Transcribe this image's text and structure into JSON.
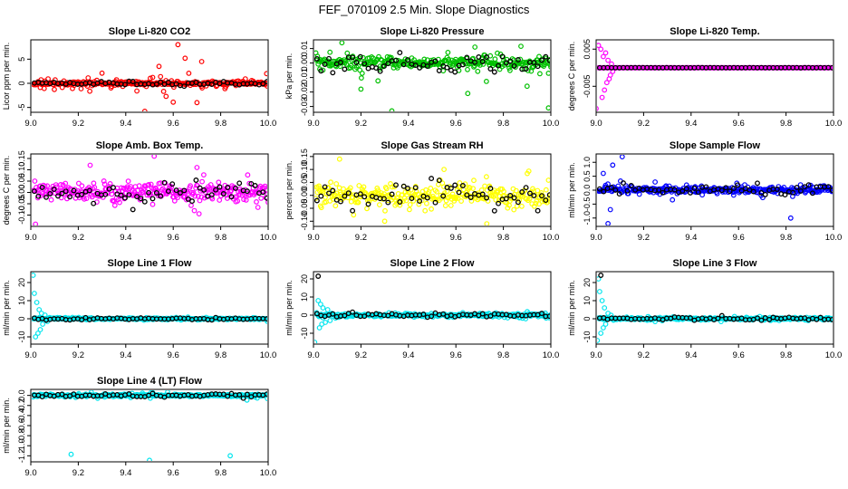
{
  "figure": {
    "title": "FEF_070109  2.5 Min. Slope Diagnostics"
  },
  "chart_data": [
    {
      "type": "scatter",
      "title": "Slope Li-820 CO2",
      "ylabel": "Licor ppm per min.",
      "xlim": [
        9.0,
        10.0
      ],
      "ylim": [
        -6,
        9
      ],
      "xticks": [
        "9.0",
        "9.2",
        "9.4",
        "9.6",
        "9.8",
        "10.0"
      ],
      "yticks": [
        "-5",
        "0",
        "5"
      ],
      "ytick_values": [
        -5,
        0,
        5
      ],
      "color": "#ff0000",
      "overlay_color": "#000000",
      "scatter": 1.2,
      "scatter2": 0.3,
      "overlay_spread": 0.35,
      "outliers": [
        [
          9.48,
          -5.8
        ],
        [
          9.62,
          8.0
        ],
        [
          9.65,
          5.2
        ],
        [
          9.72,
          4.5
        ],
        [
          9.6,
          -3.9
        ],
        [
          9.7,
          -4.0
        ],
        [
          9.3,
          2.1
        ],
        [
          9.57,
          -2.7
        ],
        [
          9.54,
          3.5
        ]
      ]
    },
    {
      "type": "scatter",
      "title": "Slope Li-820 Pressure",
      "ylabel": "kPa per min.",
      "xlim": [
        9.0,
        10.0
      ],
      "ylim": [
        -0.034,
        0.016
      ],
      "xticks": [
        "9.0",
        "9.2",
        "9.4",
        "9.6",
        "9.8",
        "10.0"
      ],
      "yticks": [
        "-0.03",
        "-0.02",
        "-0.01",
        "0.00",
        "0.01"
      ],
      "ytick_values": [
        -0.03,
        -0.02,
        -0.01,
        0.0,
        0.01
      ],
      "color": "#00c000",
      "overlay_color": "#000000",
      "scatter": 0.008,
      "scatter2": 0.003,
      "overlay_spread": 0.005,
      "outliers": [
        [
          9.12,
          0.014
        ],
        [
          9.33,
          -0.033
        ],
        [
          9.65,
          -0.021
        ],
        [
          9.99,
          -0.031
        ],
        [
          9.68,
          0.011
        ],
        [
          9.2,
          -0.018
        ],
        [
          9.9,
          -0.016
        ]
      ]
    },
    {
      "type": "scatter",
      "title": "Slope Li-820 Temp.",
      "ylabel": "degrees C per min.",
      "xlim": [
        9.0,
        10.0
      ],
      "ylim": [
        -0.012,
        0.0075
      ],
      "xticks": [
        "9.0",
        "9.2",
        "9.4",
        "9.6",
        "9.8",
        "10.0"
      ],
      "yticks": [
        "-0.005",
        "0.005"
      ],
      "ytick_values": [
        -0.005,
        0.005
      ],
      "color": "#ff00ff",
      "overlay_color": "#000000",
      "scatter": 3e-05,
      "scatter2": 1e-05,
      "overlay_spread": 2e-05,
      "base": 0.0,
      "transient": [
        [
          9.0,
          -0.011
        ],
        [
          9.01,
          0.006
        ],
        [
          9.02,
          0.005
        ],
        [
          9.025,
          -0.008
        ],
        [
          9.03,
          0.003
        ],
        [
          9.035,
          -0.006
        ],
        [
          9.04,
          0.004
        ],
        [
          9.045,
          -0.004
        ],
        [
          9.05,
          0.002
        ],
        [
          9.055,
          -0.003
        ],
        [
          9.06,
          -0.002
        ],
        [
          9.065,
          0.001
        ],
        [
          9.07,
          -0.001
        ],
        [
          9.08,
          0.0
        ]
      ],
      "outliers": []
    },
    {
      "type": "scatter",
      "title": "Slope Amb. Box Temp.",
      "ylabel": "degrees C per min.",
      "xlim": [
        9.0,
        10.0
      ],
      "ylim": [
        -0.15,
        0.17
      ],
      "xticks": [
        "9.0",
        "9.2",
        "9.4",
        "9.6",
        "9.8",
        "10.0"
      ],
      "yticks": [
        "-0.10",
        "-0.05",
        "0.00",
        "0.05",
        "0.10",
        "0.15"
      ],
      "ytick_values": [
        -0.1,
        -0.05,
        0.0,
        0.05,
        0.1,
        0.15
      ],
      "color": "#ff00ff",
      "overlay_color": "#000000",
      "scatter": 0.06,
      "scatter2": 0.03,
      "overlay_spread": 0.04,
      "outliers": [
        [
          9.52,
          0.16
        ],
        [
          9.02,
          -0.14
        ],
        [
          9.25,
          0.12
        ],
        [
          9.7,
          0.11
        ]
      ]
    },
    {
      "type": "scatter",
      "title": "Slope Gas Stream RH",
      "ylabel": "percent per min.",
      "xlim": [
        9.0,
        10.0
      ],
      "ylim": [
        -0.12,
        0.16
      ],
      "xticks": [
        "9.0",
        "9.2",
        "9.4",
        "9.6",
        "9.8",
        "10.0"
      ],
      "yticks": [
        "-0.10",
        "-0.05",
        "0.00",
        "0.05",
        "0.10",
        "0.15"
      ],
      "ytick_values": [
        -0.1,
        -0.05,
        0.0,
        0.05,
        0.1,
        0.15
      ],
      "color": "#ffff00",
      "overlay_color": "#000000",
      "scatter": 0.06,
      "scatter2": 0.03,
      "overlay_spread": 0.04,
      "outliers": [
        [
          9.11,
          0.14
        ],
        [
          9.55,
          0.1
        ],
        [
          9.73,
          -0.11
        ],
        [
          9.3,
          -0.1
        ]
      ]
    },
    {
      "type": "scatter",
      "title": "Slope Sample Flow",
      "ylabel": "ml/min per min.",
      "xlim": [
        9.0,
        10.0
      ],
      "ylim": [
        -1.3,
        1.3
      ],
      "xticks": [
        "9.0",
        "9.2",
        "9.4",
        "9.6",
        "9.8",
        "10.0"
      ],
      "yticks": [
        "-1.0",
        "-0.5",
        "0.0",
        "0.5",
        "1.0"
      ],
      "ytick_values": [
        -1.0,
        -0.5,
        0.0,
        0.5,
        1.0
      ],
      "color": "#0000ff",
      "overlay_color": "#000000",
      "scatter": 0.25,
      "scatter2": 0.1,
      "overlay_spread": 0.15,
      "outliers": [
        [
          9.05,
          -1.2
        ],
        [
          9.07,
          0.9
        ],
        [
          9.11,
          1.2
        ],
        [
          9.82,
          -1.0
        ],
        [
          9.06,
          -0.7
        ],
        [
          9.03,
          0.6
        ]
      ]
    },
    {
      "type": "scatter",
      "title": "Slope Line 1 Flow",
      "ylabel": "ml/min per min.",
      "xlim": [
        9.0,
        10.0
      ],
      "ylim": [
        -14,
        26
      ],
      "xticks": [
        "9.0",
        "9.2",
        "9.4",
        "9.6",
        "9.8",
        "10.0"
      ],
      "yticks": [
        "-10",
        "0",
        "10",
        "20"
      ],
      "ytick_values": [
        -10,
        0,
        10,
        20
      ],
      "color": "#00e5ee",
      "overlay_color": "#000000",
      "scatter": 0.9,
      "scatter2": 0.4,
      "overlay_spread": 0.5,
      "transient": [
        [
          9.01,
          24.0
        ],
        [
          9.015,
          14.0
        ],
        [
          9.02,
          -10.0
        ],
        [
          9.025,
          9.0
        ],
        [
          9.03,
          -8.0
        ],
        [
          9.035,
          5.0
        ],
        [
          9.04,
          -6.0
        ],
        [
          9.045,
          3.0
        ],
        [
          9.05,
          -3.0
        ],
        [
          9.06,
          2.0
        ],
        [
          9.07,
          -1.5
        ]
      ],
      "outliers": []
    },
    {
      "type": "scatter",
      "title": "Slope Line 2 Flow",
      "ylabel": "ml/min per min.",
      "xlim": [
        9.0,
        10.0
      ],
      "ylim": [
        -16,
        24
      ],
      "xticks": [
        "9.0",
        "9.2",
        "9.4",
        "9.6",
        "9.8",
        "10.0"
      ],
      "yticks": [
        "-10",
        "0",
        "10",
        "20"
      ],
      "ytick_values": [
        -10,
        0,
        10,
        20
      ],
      "color": "#00e5ee",
      "overlay_color": "#000000",
      "scatter": 1.5,
      "scatter2": 0.8,
      "overlay_spread": 1.0,
      "transient": [
        [
          9.005,
          -15.0
        ],
        [
          9.02,
          8.0
        ],
        [
          9.025,
          -7.0
        ],
        [
          9.03,
          6.0
        ],
        [
          9.035,
          -5.0
        ],
        [
          9.04,
          4.0
        ],
        [
          9.05,
          -4.0
        ],
        [
          9.06,
          3.0
        ],
        [
          9.07,
          -3.0
        ]
      ],
      "overlay_extra": [
        [
          9.02,
          21.5
        ]
      ],
      "outliers": []
    },
    {
      "type": "scatter",
      "title": "Slope Line 3 Flow",
      "ylabel": "ml/min per min.",
      "xlim": [
        9.0,
        10.0
      ],
      "ylim": [
        -14,
        26
      ],
      "xticks": [
        "9.0",
        "9.2",
        "9.4",
        "9.6",
        "9.8",
        "10.0"
      ],
      "yticks": [
        "-10",
        "0",
        "10",
        "20"
      ],
      "ytick_values": [
        -10,
        0,
        10,
        20
      ],
      "color": "#00e5ee",
      "overlay_color": "#000000",
      "scatter": 1.2,
      "scatter2": 0.5,
      "overlay_spread": 0.8,
      "transient": [
        [
          9.005,
          -12.0
        ],
        [
          9.01,
          22.0
        ],
        [
          9.015,
          15.0
        ],
        [
          9.02,
          -8.0
        ],
        [
          9.025,
          10.0
        ],
        [
          9.03,
          -5.0
        ],
        [
          9.035,
          6.0
        ],
        [
          9.04,
          -3.0
        ],
        [
          9.05,
          3.0
        ]
      ],
      "overlay_extra": [
        [
          9.02,
          24.0
        ]
      ],
      "outliers": []
    },
    {
      "type": "scatter",
      "title": "Slope Line 4 (LT) Flow",
      "ylabel": "ml/min per min.",
      "xlim": [
        9.0,
        10.0
      ],
      "ylim": [
        -1.32,
        0.12
      ],
      "xticks": [
        "9.0",
        "9.2",
        "9.4",
        "9.6",
        "9.8",
        "10.0"
      ],
      "yticks": [
        "-1.2",
        "-1.0",
        "-0.8",
        "-0.6",
        "-0.4",
        "-0.2",
        "0.0"
      ],
      "ytick_values": [
        -1.2,
        -1.0,
        -0.8,
        -0.6,
        -0.4,
        -0.2,
        0.0
      ],
      "color": "#00e5ee",
      "overlay_color": "#000000",
      "scatter": 0.05,
      "scatter2": 0.02,
      "overlay_spread": 0.03,
      "outliers": [
        [
          9.17,
          -1.17
        ],
        [
          9.5,
          -1.29
        ],
        [
          9.84,
          -1.2
        ]
      ]
    }
  ]
}
